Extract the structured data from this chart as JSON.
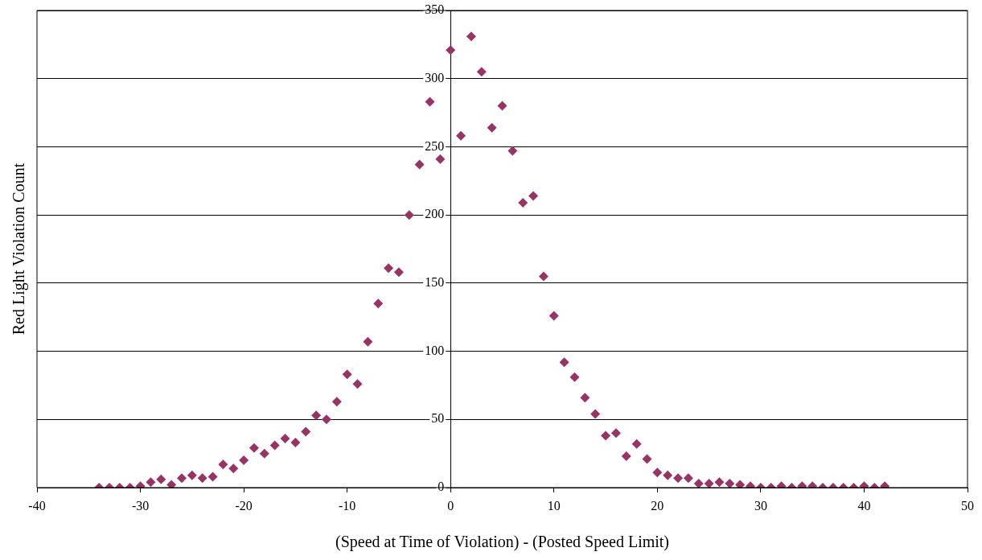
{
  "chart_data": {
    "type": "scatter",
    "xlabel": "(Speed at Time of Violation) - (Posted Speed Limit)",
    "ylabel": "Red Light Violation Count",
    "x": [
      -34,
      -33,
      -32,
      -31,
      -30,
      -29,
      -28,
      -27,
      -26,
      -25,
      -24,
      -23,
      -22,
      -21,
      -20,
      -19,
      -18,
      -17,
      -16,
      -15,
      -14,
      -13,
      -12,
      -11,
      -10,
      -9,
      -8,
      -7,
      -6,
      -5,
      -4,
      -3,
      -2,
      -1,
      0,
      1,
      2,
      3,
      4,
      5,
      6,
      7,
      8,
      9,
      10,
      11,
      12,
      13,
      14,
      15,
      16,
      17,
      18,
      19,
      20,
      21,
      22,
      23,
      24,
      25,
      26,
      27,
      28,
      29,
      30,
      31,
      32,
      33,
      34,
      35,
      36,
      37,
      38,
      39,
      40,
      41,
      42
    ],
    "series": [
      {
        "color": "#993366",
        "values": [
          0,
          0,
          0,
          0,
          1,
          4,
          6,
          2,
          7,
          9,
          7,
          8,
          17,
          14,
          20,
          29,
          25,
          31,
          36,
          33,
          41,
          53,
          50,
          63,
          83,
          76,
          107,
          135,
          161,
          158,
          200,
          237,
          283,
          241,
          321,
          258,
          331,
          305,
          264,
          280,
          247,
          209,
          214,
          155,
          126,
          92,
          81,
          66,
          54,
          38,
          40,
          23,
          32,
          21,
          11,
          9,
          7,
          7,
          3,
          3,
          4,
          3,
          2,
          1,
          0,
          0,
          1,
          0,
          1,
          1,
          0,
          0,
          0,
          0,
          1,
          0,
          1
        ]
      }
    ],
    "marker": "diamond",
    "xlim": [
      -40,
      50
    ],
    "xticks": [
      -40,
      -30,
      -20,
      -10,
      0,
      10,
      20,
      30,
      40,
      50
    ],
    "ylim": [
      0,
      350
    ],
    "yticks": [
      0,
      50,
      100,
      150,
      200,
      250,
      300,
      350
    ],
    "grid": "y",
    "legend": false
  }
}
